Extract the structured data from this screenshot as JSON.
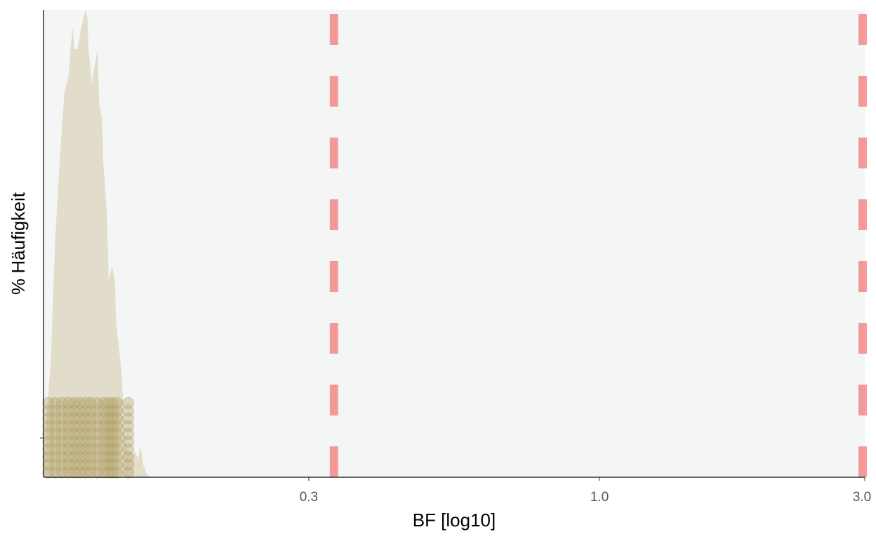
{
  "chart_data": {
    "type": "area",
    "title": "",
    "xlabel": "BF [log10]",
    "ylabel": "% Häufigkeit",
    "x_scale": "log10",
    "xlim": [
      0.1,
      3.0
    ],
    "ylim": [
      0,
      1.07
    ],
    "x_ticks": [
      {
        "value": 0.3,
        "label": "0.3"
      },
      {
        "value": 1.0,
        "label": "1.0"
      },
      {
        "value": 3.0,
        "label": "3.0"
      }
    ],
    "y_ticks": [
      {
        "value": 0.09,
        "label": ""
      }
    ],
    "grid": false,
    "legend": "none",
    "colors": {
      "panel_background": "#f4f6f5",
      "density_fill": "#e2dccb",
      "points": "#b5a46c",
      "reference_lines": "#f4797b",
      "axis_line": "#333333"
    },
    "density": {
      "x": [
        0.1,
        0.101,
        0.103,
        0.105,
        0.107,
        0.109,
        0.111,
        0.112,
        0.113,
        0.1135,
        0.115,
        0.117,
        0.119,
        0.12,
        0.1205,
        0.121,
        0.122,
        0.1235,
        0.125,
        0.126,
        0.1275,
        0.128,
        0.13,
        0.131,
        0.132,
        0.133,
        0.134,
        0.1345,
        0.135,
        0.136,
        0.138,
        0.14,
        0.142,
        0.143,
        0.144,
        0.146,
        0.148,
        0.149,
        0.15,
        0.151,
        0.152,
        0.153,
        0.155
      ],
      "y": [
        0.02,
        0.12,
        0.26,
        0.55,
        0.73,
        0.88,
        0.92,
        0.99,
        1.03,
        0.98,
        0.98,
        1.03,
        1.07,
        1.05,
        0.98,
        0.96,
        0.9,
        0.94,
        0.98,
        0.85,
        0.82,
        0.73,
        0.6,
        0.45,
        0.47,
        0.48,
        0.46,
        0.44,
        0.36,
        0.32,
        0.25,
        0.1,
        0.05,
        0.06,
        0.05,
        0.06,
        0.04,
        0.07,
        0.06,
        0.03,
        0.02,
        0.01,
        0.0
      ]
    },
    "points": {
      "x_columns": [
        0.102,
        0.105,
        0.108,
        0.111,
        0.1135,
        0.116,
        0.119,
        0.1215,
        0.125,
        0.1285,
        0.131,
        0.133,
        0.1355,
        0.142
      ],
      "y_range": [
        0.0,
        0.17
      ]
    },
    "reference_lines": [
      {
        "x": 0.333
      },
      {
        "x": 3.0
      }
    ]
  }
}
